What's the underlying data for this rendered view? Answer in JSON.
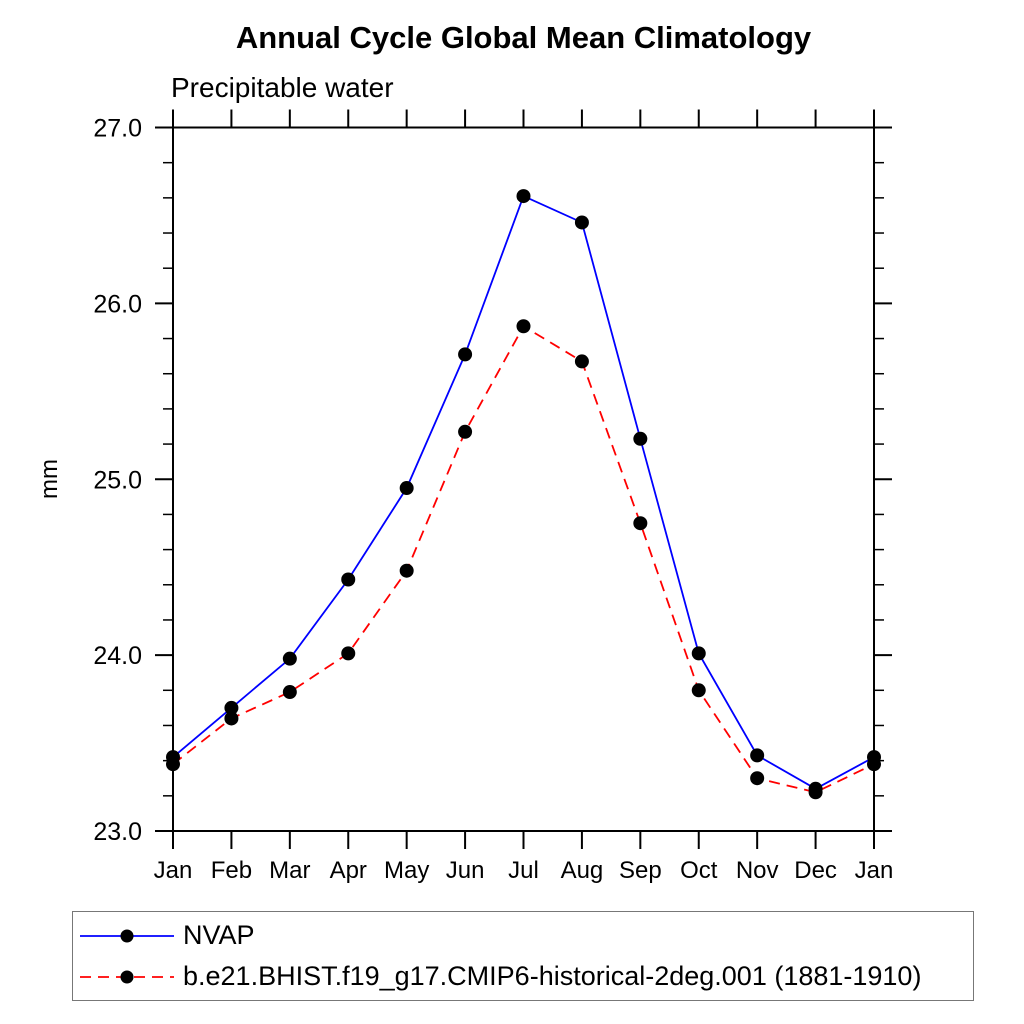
{
  "page": {
    "background": "#ffffff"
  },
  "chart_data": {
    "type": "line",
    "title": "Annual Cycle Global Mean Climatology",
    "subtitle": "Precipitable water",
    "ylabel": "mm",
    "xlabel": "",
    "categories": [
      "Jan",
      "Feb",
      "Mar",
      "Apr",
      "May",
      "Jun",
      "Jul",
      "Aug",
      "Sep",
      "Oct",
      "Nov",
      "Dec",
      "Jan"
    ],
    "ylim": [
      23.0,
      27.0
    ],
    "ytick_major": [
      23.0,
      24.0,
      25.0,
      26.0,
      27.0
    ],
    "ytick_labels": [
      "23.0",
      "24.0",
      "25.0",
      "26.0",
      "27.0"
    ],
    "ytick_minor_step": 0.2,
    "grid": false,
    "legend_position": "bottom",
    "marker": {
      "shape": "circle",
      "color": "#000000",
      "radius": 7
    },
    "axis_color": "#000000",
    "series": [
      {
        "name": "NVAP",
        "color": "#0000ff",
        "style": "solid",
        "values": [
          23.42,
          23.7,
          23.98,
          24.43,
          24.95,
          25.71,
          26.61,
          26.46,
          25.23,
          24.01,
          23.43,
          23.24,
          23.42
        ]
      },
      {
        "name": "b.e21.BHIST.f19_g17.CMIP6-historical-2deg.001 (1881-1910)",
        "color": "#ff0000",
        "style": "dashed",
        "values": [
          23.38,
          23.64,
          23.79,
          24.01,
          24.48,
          25.27,
          25.87,
          25.67,
          24.75,
          23.8,
          23.3,
          23.22,
          23.38
        ]
      }
    ]
  }
}
